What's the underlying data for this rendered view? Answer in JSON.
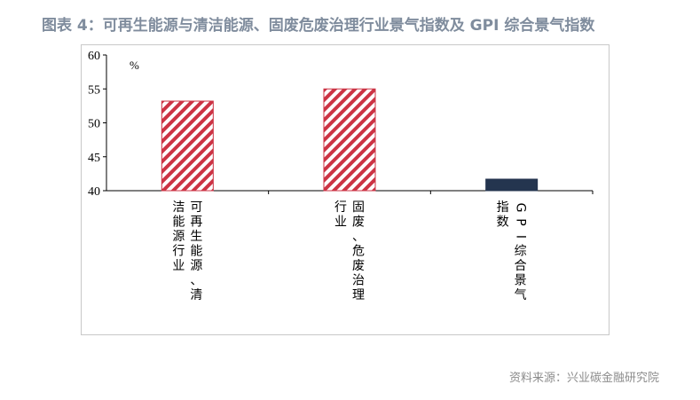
{
  "title": "图表 4：可再生能源与清洁能源、固废危废治理行业景气指数及 GPI 综合景气指数",
  "source": "资料来源：兴业碳金融研究院",
  "colors": {
    "stripe": "#cc3344",
    "gpi_bar": "#24354f",
    "title": "#7f8c9d"
  },
  "chart_data": {
    "type": "bar",
    "title": "",
    "xlabel": "",
    "ylabel": "",
    "unit": "%",
    "ylim": [
      40,
      60
    ],
    "yticks": [
      40,
      45,
      50,
      55,
      60
    ],
    "grid": false,
    "legend": "none",
    "categories": [
      "可再生能源、清洁能源行业",
      "固废、危废治理行业",
      "GPI综合景气指数"
    ],
    "values": [
      53.2,
      55.0,
      41.7
    ],
    "bar_styles": [
      "striped",
      "striped",
      "solid"
    ]
  }
}
